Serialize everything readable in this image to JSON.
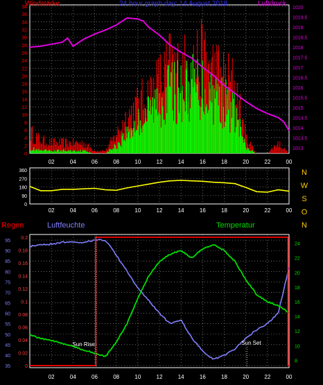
{
  "chart_data": [
    {
      "type": "line",
      "title": "24 hour graph day: 14 August 2018",
      "left_axis_label": "Windstärke",
      "right_axis_label": "Luftdruck",
      "x_ticks": [
        "02",
        "04",
        "06",
        "08",
        "10",
        "12",
        "14",
        "16",
        "18",
        "20",
        "22",
        "00"
      ],
      "y_left_ticks": [
        "0",
        "2",
        "4",
        "6",
        "8",
        "10",
        "12",
        "14",
        "16",
        "18",
        "20",
        "22",
        "24",
        "26",
        "28",
        "30",
        "32",
        "34",
        "36",
        "38"
      ],
      "y_left_range": [
        0,
        38
      ],
      "y_right_ticks": [
        "1013",
        "1013.5",
        "1014",
        "1014.5",
        "1015",
        "1015.5",
        "1016",
        "1016.5",
        "1017",
        "1017.5",
        "1018",
        "1018.5",
        "1019",
        "1019.5",
        "1020"
      ],
      "y_right_range": [
        1013,
        1020
      ],
      "grid": true,
      "series": [
        {
          "color": "#e000e0",
          "axis": "right",
          "x": [
            0,
            1,
            2,
            3,
            3.5,
            4,
            5,
            6,
            7,
            8,
            9,
            10,
            10.5,
            11,
            12,
            13,
            14,
            15,
            16,
            17,
            18,
            19,
            20,
            21,
            22,
            23,
            23.5,
            24
          ],
          "values": [
            1018.0,
            1018.05,
            1018.15,
            1018.25,
            1018.45,
            1018.05,
            1018.4,
            1018.65,
            1018.85,
            1019.1,
            1019.45,
            1019.4,
            1019.3,
            1019.0,
            1018.6,
            1018.1,
            1017.75,
            1017.45,
            1017.0,
            1016.6,
            1016.1,
            1015.7,
            1015.3,
            1014.95,
            1014.7,
            1014.5,
            1014.3,
            1013.85
          ]
        },
        {
          "color": "#ff0000",
          "axis": "left",
          "x": [
            0,
            1,
            2,
            3,
            4,
            5,
            6,
            7,
            8,
            9,
            10,
            11,
            12,
            13,
            14,
            15,
            16,
            17,
            18,
            19,
            20,
            21,
            22,
            23,
            24
          ],
          "values": [
            8,
            5,
            4,
            4,
            4,
            4,
            1,
            1,
            7,
            14,
            18,
            22,
            27,
            33,
            31,
            34,
            35,
            32,
            28,
            26,
            6,
            0,
            0,
            4,
            0
          ]
        },
        {
          "color": "#00ff00",
          "axis": "left",
          "x": [
            0,
            1,
            2,
            3,
            4,
            5,
            6,
            7,
            8,
            9,
            10,
            11,
            12,
            13,
            14,
            15,
            16,
            17,
            18,
            19,
            20,
            21,
            22,
            23,
            24
          ],
          "values": [
            2,
            1,
            1,
            1,
            1,
            1,
            0,
            0,
            3,
            8,
            12,
            16,
            21,
            25,
            24,
            26,
            26,
            24,
            20,
            16,
            2,
            0,
            0,
            0,
            0
          ]
        }
      ]
    },
    {
      "type": "line",
      "y_left_ticks": [
        "360",
        "270",
        "180",
        "90",
        "0"
      ],
      "y_left_range": [
        0,
        360
      ],
      "right_labels": [
        "N",
        "W",
        "S",
        "O",
        "N"
      ],
      "x_ticks": [
        "02",
        "04",
        "06",
        "08",
        "10",
        "12",
        "14",
        "16",
        "18",
        "20",
        "22",
        "00"
      ],
      "grid": true,
      "series": [
        {
          "color": "#ffff00",
          "x": [
            0,
            1,
            2,
            3,
            4,
            5,
            6,
            7,
            8,
            9,
            10,
            11,
            12,
            13,
            14,
            15,
            16,
            17,
            18,
            19,
            20,
            21,
            22,
            23,
            24
          ],
          "values": [
            185,
            140,
            140,
            155,
            155,
            160,
            165,
            150,
            145,
            170,
            190,
            210,
            230,
            245,
            250,
            245,
            240,
            230,
            225,
            215,
            175,
            130,
            125,
            150,
            135
          ]
        }
      ]
    },
    {
      "type": "line",
      "label_regen": "Regen",
      "label_luftfeuchte": "Luftfeuchte",
      "label_temperatur": "Temperatur",
      "annotations": [
        "Sun Rise",
        "Sun Set"
      ],
      "y_humidity_ticks": [
        "35",
        "40",
        "45",
        "50",
        "55",
        "60",
        "65",
        "70",
        "75",
        "80",
        "85",
        "90",
        "95"
      ],
      "y_humidity_range": [
        35,
        97
      ],
      "y_rain_ticks": [
        "0",
        "0.02",
        "0.04",
        "0.06",
        "0.08",
        "0.1",
        "0.12",
        "0.14",
        "0.16",
        "0.18",
        "0.2"
      ],
      "y_rain_range": [
        0,
        0.2
      ],
      "y_temp_ticks": [
        "8",
        "10",
        "12",
        "14",
        "16",
        "18",
        "20",
        "22",
        "24"
      ],
      "y_temp_range": [
        7,
        25
      ],
      "x_ticks": [
        "02",
        "04",
        "06",
        "08",
        "10",
        "12",
        "14",
        "16",
        "18",
        "20",
        "22",
        "00"
      ],
      "grid": true,
      "series": [
        {
          "color": "#8080ff",
          "axis": "humidity",
          "x": [
            0,
            1,
            2,
            3,
            4,
            5,
            6,
            7,
            8,
            9,
            10,
            11,
            12,
            13,
            14,
            15,
            16,
            17,
            18,
            19,
            20,
            21,
            22,
            23,
            24
          ],
          "values": [
            92,
            93,
            93,
            94,
            94,
            94,
            95,
            95,
            88,
            80,
            72,
            66,
            60,
            55,
            57,
            48,
            42,
            38,
            40,
            43,
            48,
            52,
            55,
            60,
            82
          ]
        },
        {
          "color": "#00e000",
          "axis": "temp",
          "x": [
            0,
            1,
            2,
            3,
            4,
            5,
            6,
            7,
            8,
            9,
            10,
            11,
            12,
            13,
            14,
            15,
            16,
            17,
            18,
            19,
            20,
            21,
            22,
            23,
            24
          ],
          "values": [
            11.5,
            11.0,
            10.7,
            10.3,
            9.9,
            9.4,
            9.0,
            8.5,
            10.5,
            13.0,
            16.5,
            19.5,
            21.5,
            22.5,
            23.0,
            22.0,
            23.2,
            23.8,
            23.0,
            21.5,
            19.0,
            17.0,
            16.0,
            15.5,
            14.5
          ]
        },
        {
          "color": "#ff0000",
          "axis": "rain",
          "x": [
            0,
            6.1,
            6.1,
            23.9,
            23.9,
            24
          ],
          "values": [
            0,
            0,
            0.2,
            0.2,
            0,
            0
          ]
        }
      ]
    }
  ]
}
